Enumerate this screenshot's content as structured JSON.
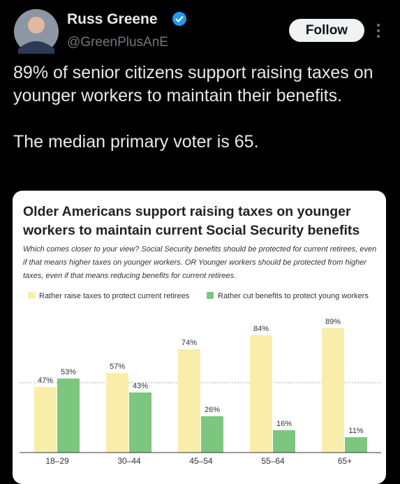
{
  "tweet": {
    "name": "Russ Greene",
    "handle": "@GreenPlusAnE",
    "button": "Follow",
    "text": [
      "89% of senior citizens support raising taxes on younger workers to maintain their benefits.",
      "The median primary voter is 65."
    ]
  },
  "chart_data": {
    "type": "bar",
    "title": "Older Americans support raising taxes on younger workers to maintain current Social Security benefits",
    "subtitle": "Which comes closer to your view? Social Security benefits should be protected for current retirees, even if that means higher taxes on younger workers. OR Younger workers should be protected from higher taxes, even if that means reducing benefits for current retirees.",
    "categories": [
      "18–29",
      "30–44",
      "45–54",
      "55–64",
      "65+"
    ],
    "series": [
      {
        "name": "Rather raise taxes to protect current retirees",
        "color": "#f8eeaa",
        "values": [
          47,
          57,
          74,
          84,
          89
        ],
        "value_labels": [
          "47%",
          "57%",
          "74%",
          "84%",
          "89%"
        ]
      },
      {
        "name": "Rather cut benefits to protect young workers",
        "color": "#7dc67f",
        "values": [
          53,
          43,
          26,
          16,
          11
        ],
        "value_labels": [
          "53%",
          "43%",
          "26%",
          "16%",
          "11%"
        ]
      }
    ],
    "ylim": [
      0,
      100
    ],
    "reference_line": 50,
    "legend": "top"
  }
}
